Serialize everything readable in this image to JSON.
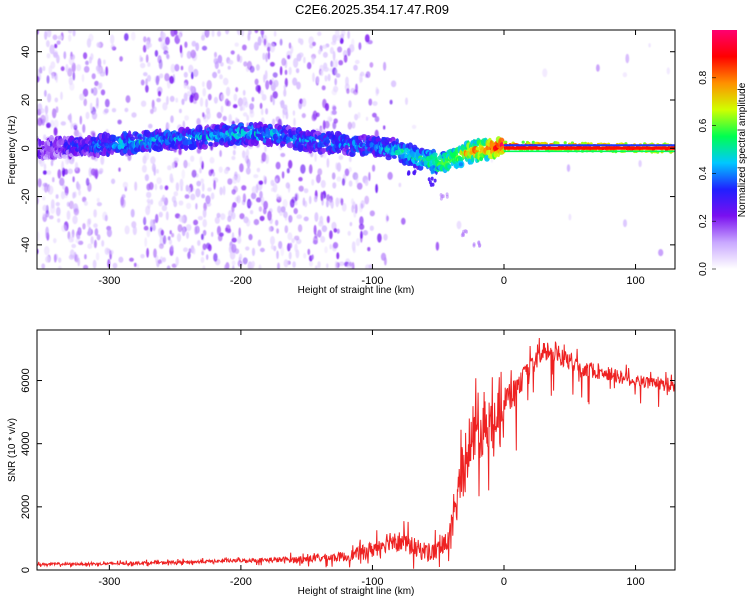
{
  "chart_data": [
    {
      "type": "heatmap",
      "title": "C2E6.2025.354.17.47.R09",
      "xlabel": "Height of straight line (km)",
      "ylabel": "Frequency (Hz)",
      "xlim": [
        -355,
        130
      ],
      "ylim": [
        -50,
        49
      ],
      "xticks": [
        -300,
        -200,
        -100,
        0,
        100
      ],
      "yticks": [
        -40,
        -20,
        0,
        20,
        40
      ],
      "colorbar": {
        "label": "Normalized spectral amplitude",
        "range": [
          0.0,
          1.0
        ],
        "ticks": [
          "0.0",
          "0.2",
          "0.4",
          "0.6",
          "0.8"
        ],
        "tick_values": [
          0.0,
          0.2,
          0.4,
          0.6,
          0.8
        ],
        "colors": [
          "#ffffff",
          "#c9a8ff",
          "#7a10f0",
          "#2020ff",
          "#00c8ff",
          "#00ff50",
          "#d0ff00",
          "#ff9000",
          "#ff0000",
          "#ff0070"
        ]
      },
      "ridge": [
        {
          "x": -350,
          "y": 0,
          "a": 0.22
        },
        {
          "x": -290,
          "y": 2,
          "a": 0.45
        },
        {
          "x": -240,
          "y": 4,
          "a": 0.4
        },
        {
          "x": -200,
          "y": 6,
          "a": 0.45
        },
        {
          "x": -180,
          "y": 6,
          "a": 0.42
        },
        {
          "x": -150,
          "y": 3,
          "a": 0.38
        },
        {
          "x": -100,
          "y": 1,
          "a": 0.4
        },
        {
          "x": -80,
          "y": -1,
          "a": 0.48
        },
        {
          "x": -60,
          "y": -5,
          "a": 0.55
        },
        {
          "x": -45,
          "y": -6,
          "a": 0.62
        },
        {
          "x": -30,
          "y": -2,
          "a": 0.72
        },
        {
          "x": -10,
          "y": 0,
          "a": 0.88
        },
        {
          "x": 0,
          "y": 1,
          "a": 0.95
        },
        {
          "x": 130,
          "y": 0,
          "a": 1.0
        }
      ],
      "branch": [
        {
          "x": -70,
          "y": -10
        },
        {
          "x": -55,
          "y": -14
        },
        {
          "x": -45,
          "y": -20
        },
        {
          "x": -30,
          "y": -35
        },
        {
          "x": -20,
          "y": -40
        }
      ]
    },
    {
      "type": "line",
      "xlabel": "Height of straight line (km)",
      "ylabel": "SNR (10 * v/v)",
      "xlim": [
        -355,
        130
      ],
      "ylim": [
        0,
        7600
      ],
      "xticks": [
        -300,
        -200,
        -100,
        0,
        100
      ],
      "yticks": [
        0,
        2000,
        4000,
        6000
      ],
      "color": "#ee2222",
      "envelope": [
        {
          "x": -355,
          "y": 180
        },
        {
          "x": -300,
          "y": 200
        },
        {
          "x": -250,
          "y": 240
        },
        {
          "x": -200,
          "y": 300
        },
        {
          "x": -160,
          "y": 330
        },
        {
          "x": -120,
          "y": 420
        },
        {
          "x": -100,
          "y": 650
        },
        {
          "x": -85,
          "y": 1000
        },
        {
          "x": -75,
          "y": 850
        },
        {
          "x": -65,
          "y": 650
        },
        {
          "x": -55,
          "y": 550
        },
        {
          "x": -45,
          "y": 750
        },
        {
          "x": -38,
          "y": 1500
        },
        {
          "x": -33,
          "y": 3000
        },
        {
          "x": -25,
          "y": 4200
        },
        {
          "x": -15,
          "y": 4500
        },
        {
          "x": -5,
          "y": 5000
        },
        {
          "x": 5,
          "y": 5500
        },
        {
          "x": 20,
          "y": 6400
        },
        {
          "x": 30,
          "y": 6900
        },
        {
          "x": 45,
          "y": 6700
        },
        {
          "x": 60,
          "y": 6400
        },
        {
          "x": 80,
          "y": 6200
        },
        {
          "x": 100,
          "y": 6000
        },
        {
          "x": 115,
          "y": 5900
        },
        {
          "x": 130,
          "y": 5800
        }
      ],
      "noise": [
        {
          "x": -355,
          "a": 60
        },
        {
          "x": -200,
          "a": 90
        },
        {
          "x": -120,
          "a": 250
        },
        {
          "x": -90,
          "a": 550
        },
        {
          "x": -60,
          "a": 500
        },
        {
          "x": -40,
          "a": 600
        },
        {
          "x": -30,
          "a": 1800
        },
        {
          "x": -15,
          "a": 1400
        },
        {
          "x": 0,
          "a": 900
        },
        {
          "x": 20,
          "a": 500
        },
        {
          "x": 130,
          "a": 300
        }
      ]
    }
  ]
}
